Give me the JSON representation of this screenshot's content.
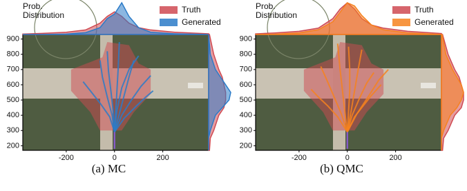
{
  "chart_data": [
    {
      "type": "trajectory",
      "title": "(a) MC",
      "density_label": [
        "Prob.",
        "Distribution"
      ],
      "xlim": [
        -380,
        390
      ],
      "ylim": [
        170,
        930
      ],
      "xticks": [
        -200,
        0,
        200
      ],
      "yticks": [
        200,
        300,
        400,
        500,
        600,
        700,
        800,
        900
      ],
      "history": {
        "color": "#8a5ad0",
        "x": [
          0,
          0
        ],
        "y": [
          180,
          290
        ]
      },
      "truth_region": {
        "x": [
          -60,
          -100,
          -180,
          -180,
          -50,
          -30,
          60,
          100,
          150,
          150,
          80,
          30
        ],
        "y": [
          300,
          420,
          560,
          700,
          780,
          880,
          860,
          740,
          700,
          540,
          420,
          300
        ]
      },
      "series": [
        {
          "name": "Truth",
          "color": "#cf4a52"
        },
        {
          "name": "Generated",
          "color": "#2b7bc8",
          "trajectories": [
            {
              "x": [
                0,
                -10,
                -30,
                -50,
                -60
              ],
              "y": [
                290,
                400,
                520,
                650,
                760
              ]
            },
            {
              "x": [
                0,
                5,
                10,
                15,
                20
              ],
              "y": [
                290,
                420,
                560,
                700,
                880
              ]
            },
            {
              "x": [
                0,
                20,
                40,
                60,
                80
              ],
              "y": [
                290,
                410,
                530,
                650,
                760
              ]
            },
            {
              "x": [
                0,
                30,
                70,
                110,
                150
              ],
              "y": [
                290,
                400,
                500,
                590,
                660
              ]
            },
            {
              "x": [
                0,
                -20,
                -60,
                -100,
                -130
              ],
              "y": [
                290,
                390,
                480,
                560,
                620
              ]
            },
            {
              "x": [
                0,
                10,
                30,
                60,
                100
              ],
              "y": [
                290,
                430,
                580,
                700,
                790
              ]
            },
            {
              "x": [
                0,
                -5,
                -15,
                -25,
                -30
              ],
              "y": [
                290,
                420,
                560,
                690,
                820
              ]
            },
            {
              "x": [
                0,
                40,
                90,
                130,
                160
              ],
              "y": [
                290,
                380,
                460,
                520,
                560
              ]
            }
          ]
        }
      ],
      "x_density": {
        "x": [
          -380,
          -300,
          -200,
          -120,
          -60,
          -30,
          0,
          30,
          60,
          100,
          150,
          250,
          390
        ],
        "truth": [
          0.2,
          0.5,
          1,
          2,
          5,
          8,
          10,
          8,
          5,
          3,
          2,
          1,
          0.3
        ],
        "generated": [
          0,
          0,
          0.2,
          0.8,
          3,
          7,
          9,
          14,
          8,
          3,
          1,
          0.3,
          0
        ]
      },
      "y_density": {
        "y": [
          170,
          250,
          300,
          400,
          450,
          500,
          550,
          600,
          650,
          700,
          800,
          930
        ],
        "truth": [
          0.5,
          1,
          3,
          6,
          9,
          10,
          10,
          9,
          8,
          6,
          3,
          0.5
        ],
        "generated": [
          0,
          0,
          1,
          4,
          8,
          12,
          13,
          10,
          7,
          4,
          1,
          0
        ]
      }
    },
    {
      "type": "trajectory",
      "title": "(b) QMC",
      "density_label": [
        "Prob.",
        "Distribution"
      ],
      "xlim": [
        -380,
        390
      ],
      "ylim": [
        170,
        930
      ],
      "xticks": [
        -200,
        0,
        200
      ],
      "yticks": [
        200,
        300,
        400,
        500,
        600,
        700,
        800,
        900
      ],
      "history": {
        "color": "#8a5ad0",
        "x": [
          0,
          0
        ],
        "y": [
          180,
          290
        ]
      },
      "truth_region": {
        "x": [
          -60,
          -100,
          -180,
          -180,
          -50,
          -30,
          60,
          100,
          150,
          150,
          80,
          30
        ],
        "y": [
          300,
          420,
          560,
          700,
          780,
          880,
          860,
          740,
          700,
          540,
          420,
          300
        ]
      },
      "series": [
        {
          "name": "Truth",
          "color": "#cf4a52"
        },
        {
          "name": "Generated",
          "color": "#f6821f",
          "trajectories": [
            {
              "x": [
                0,
                -40,
                -80,
                -120,
                -150
              ],
              "y": [
                290,
                390,
                460,
                520,
                570
              ]
            },
            {
              "x": [
                0,
                -10,
                -20,
                -30,
                -40
              ],
              "y": [
                290,
                420,
                560,
                700,
                870
              ]
            },
            {
              "x": [
                0,
                15,
                30,
                45,
                60
              ],
              "y": [
                290,
                420,
                560,
                700,
                830
              ]
            },
            {
              "x": [
                0,
                40,
                90,
                130,
                170
              ],
              "y": [
                290,
                410,
                530,
                630,
                700
              ]
            },
            {
              "x": [
                0,
                -25,
                -60,
                -90,
                -110
              ],
              "y": [
                290,
                410,
                540,
                650,
                720
              ]
            },
            {
              "x": [
                0,
                20,
                50,
                80,
                110
              ],
              "y": [
                290,
                400,
                510,
                610,
                680
              ]
            },
            {
              "x": [
                0,
                5,
                10,
                10,
                5
              ],
              "y": [
                290,
                420,
                560,
                700,
                850
              ]
            },
            {
              "x": [
                0,
                30,
                70,
                100,
                140
              ],
              "y": [
                290,
                390,
                470,
                530,
                600
              ]
            }
          ]
        }
      ],
      "x_density": {
        "x": [
          -380,
          -300,
          -200,
          -120,
          -60,
          -30,
          0,
          30,
          60,
          100,
          150,
          250,
          390
        ],
        "truth": [
          0.2,
          0.5,
          1,
          2,
          5,
          8,
          10,
          8,
          5,
          3,
          2,
          1,
          0.3
        ],
        "generated": [
          0,
          0.1,
          0.5,
          1.5,
          4,
          7,
          10,
          9,
          6,
          3,
          1.5,
          0.5,
          0
        ]
      },
      "y_density": {
        "y": [
          170,
          250,
          300,
          400,
          450,
          500,
          550,
          600,
          650,
          700,
          800,
          930
        ],
        "truth": [
          0.5,
          1,
          3,
          6,
          9,
          10,
          10,
          9,
          8,
          6,
          3,
          0.5
        ],
        "generated": [
          0,
          0,
          1,
          4,
          7,
          9,
          10,
          9,
          7,
          5,
          2,
          0.3
        ]
      }
    }
  ]
}
